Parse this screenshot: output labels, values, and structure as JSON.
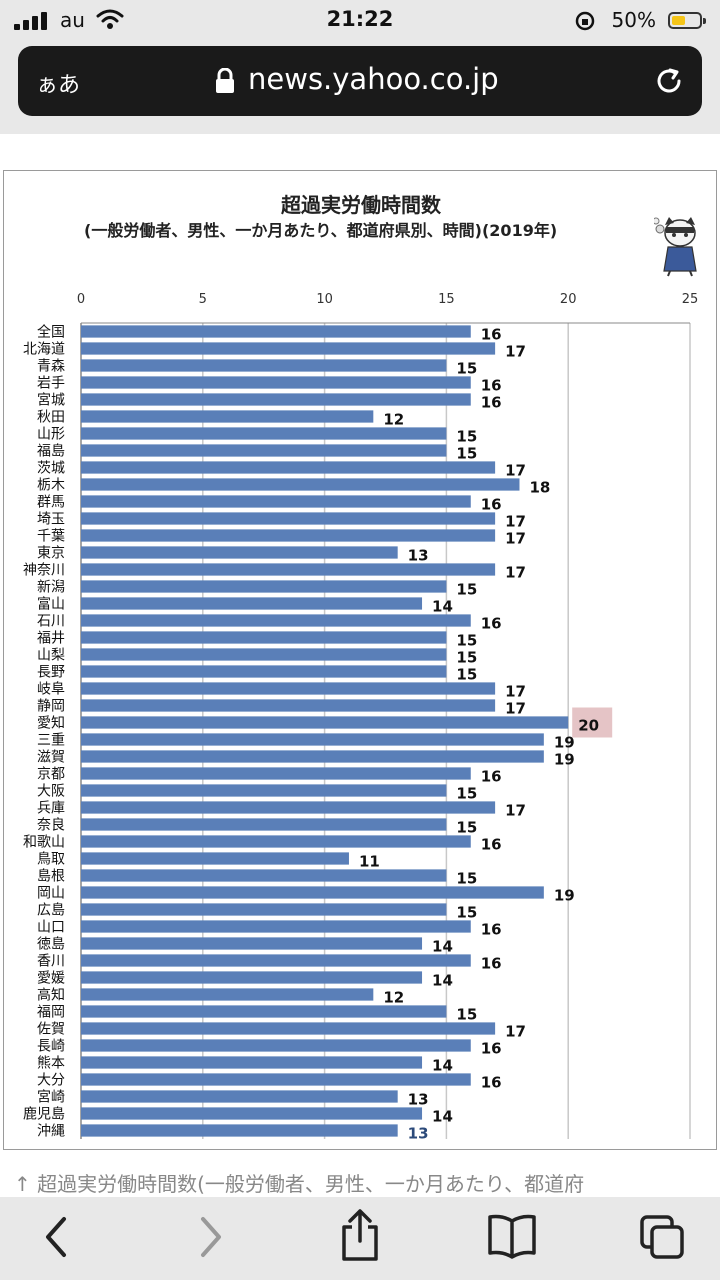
{
  "status_bar": {
    "carrier": "au",
    "time": "21:22",
    "battery_percent": "50%",
    "battery_level": 0.5
  },
  "browser": {
    "text_size_label": "ぁあ",
    "url": "news.yahoo.co.jp"
  },
  "caption": "↑ 超過実労働時間数(一般労働者、男性、一か月あたり、都道府",
  "colors": {
    "bar": "#5a7fb8",
    "highlight": "#e5c4c6",
    "grid": "#c8c8c8"
  },
  "chart_data": {
    "type": "bar",
    "orientation": "horizontal",
    "title": "超過実労働時間数",
    "subtitle": "(一般労働者、男性、一か月あたり、都道府県別、時間)(2019年)",
    "xlim": [
      0,
      25
    ],
    "xticks": [
      0,
      5,
      10,
      15,
      20,
      25
    ],
    "grid": true,
    "highlight": "愛知",
    "categories": [
      "全国",
      "北海道",
      "青森",
      "岩手",
      "宮城",
      "秋田",
      "山形",
      "福島",
      "茨城",
      "栃木",
      "群馬",
      "埼玉",
      "千葉",
      "東京",
      "神奈川",
      "新潟",
      "富山",
      "石川",
      "福井",
      "山梨",
      "長野",
      "岐阜",
      "静岡",
      "愛知",
      "三重",
      "滋賀",
      "京都",
      "大阪",
      "兵庫",
      "奈良",
      "和歌山",
      "鳥取",
      "島根",
      "岡山",
      "広島",
      "山口",
      "徳島",
      "香川",
      "愛媛",
      "高知",
      "福岡",
      "佐賀",
      "長崎",
      "熊本",
      "大分",
      "宮崎",
      "鹿児島",
      "沖縄"
    ],
    "values": [
      16,
      17,
      15,
      16,
      16,
      12,
      15,
      15,
      17,
      18,
      16,
      17,
      17,
      13,
      17,
      15,
      14,
      16,
      15,
      15,
      15,
      17,
      17,
      20,
      19,
      19,
      16,
      15,
      17,
      15,
      16,
      11,
      15,
      19,
      15,
      16,
      14,
      16,
      14,
      12,
      15,
      17,
      16,
      14,
      16,
      13,
      14,
      13
    ]
  }
}
